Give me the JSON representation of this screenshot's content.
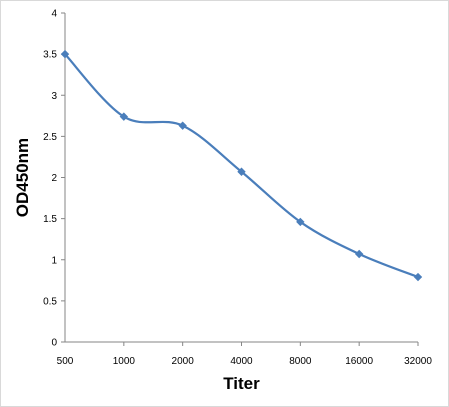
{
  "chart_data": {
    "type": "line",
    "xlabel": "Titer",
    "ylabel": "OD450nm",
    "x": [
      "500",
      "1000",
      "2000",
      "4000",
      "8000",
      "16000",
      "32000"
    ],
    "series": [
      {
        "values": [
          3.5,
          2.74,
          2.63,
          2.07,
          1.46,
          1.07,
          0.79
        ]
      }
    ],
    "yticks": [
      "0",
      "0.5",
      "1",
      "1.5",
      "2",
      "2.5",
      "3",
      "3.5",
      "4"
    ],
    "ylim": [
      0,
      4
    ],
    "grid": false,
    "legend": "none",
    "marker": "diamond",
    "line_style": "smoothed",
    "series_color": "#4a7ebb"
  }
}
